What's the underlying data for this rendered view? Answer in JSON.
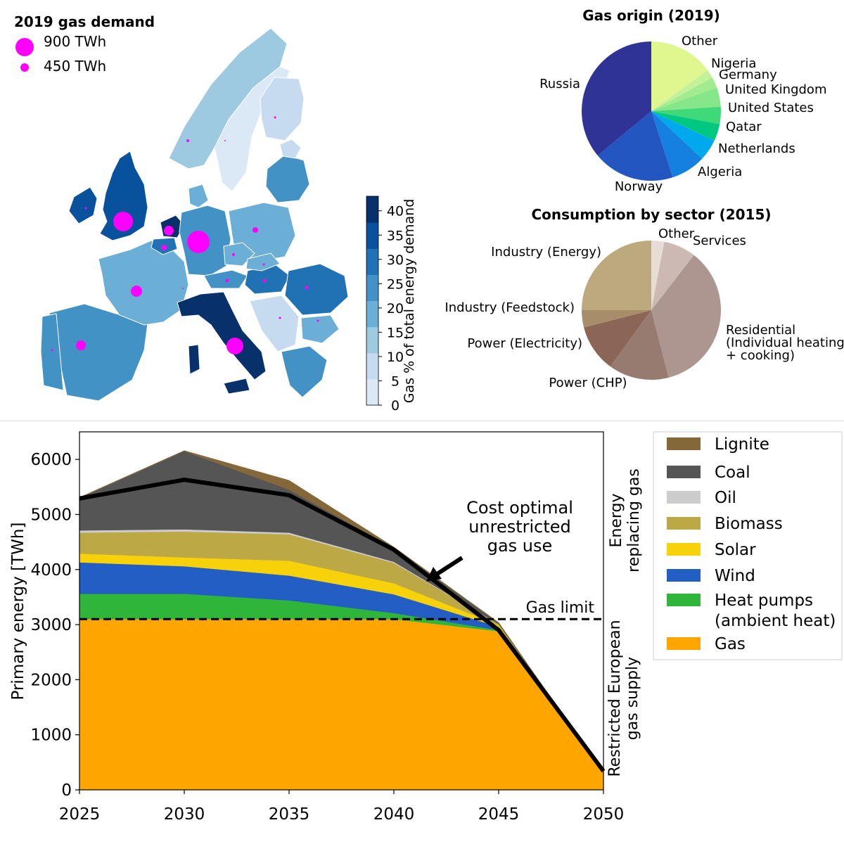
{
  "map": {
    "title": "2019 gas demand",
    "bubble_legend": [
      {
        "label": "900 TWh",
        "value": 900
      },
      {
        "label": "450 TWh",
        "value": 450
      }
    ],
    "bubble_color": "#ff00ff",
    "colorbar": {
      "label": "Gas % of total energy demand",
      "ticks": [
        0,
        5,
        10,
        15,
        20,
        25,
        30,
        35,
        40
      ],
      "vmin": 0,
      "vmax": 43,
      "cmap": [
        "#dbe9f6",
        "#c6dbef",
        "#9ecae1",
        "#6baed6",
        "#4292c6",
        "#2171b5",
        "#08519c",
        "#08306b"
      ]
    }
  },
  "chart_data": [
    {
      "type": "pie",
      "title": "Gas origin (2019)",
      "slices": [
        {
          "label": "Other",
          "value": 15.0,
          "color": "#e0f78f"
        },
        {
          "label": "Nigeria",
          "value": 2.0,
          "color": "#c2f29a"
        },
        {
          "label": "Germany",
          "value": 2.5,
          "color": "#a3eb8f"
        },
        {
          "label": "United Kingdom",
          "value": 4.5,
          "color": "#86e68a"
        },
        {
          "label": "United States",
          "value": 4.0,
          "color": "#3fd97a"
        },
        {
          "label": "Qatar",
          "value": 4.0,
          "color": "#00c880"
        },
        {
          "label": "Netherlands",
          "value": 5.0,
          "color": "#00a8ee"
        },
        {
          "label": "Algeria",
          "value": 8.0,
          "color": "#1580e0"
        },
        {
          "label": "Norway",
          "value": 19.0,
          "color": "#2356c0"
        },
        {
          "label": "Russia",
          "value": 36.0,
          "color": "#2f3396"
        }
      ]
    },
    {
      "type": "pie",
      "title": "Consumption by sector (2015)",
      "slices": [
        {
          "label": "Other",
          "value": 3.0,
          "color": "#e8dcd6"
        },
        {
          "label": "Services",
          "value": 7.5,
          "color": "#cdb9b3"
        },
        {
          "label": "Residential\n(Individual heating\n+ cooking)",
          "value": 35.5,
          "color": "#ad968f"
        },
        {
          "label": "Power (CHP)",
          "value": 14.0,
          "color": "#987b70"
        },
        {
          "label": "Power (Electricity)",
          "value": 11.0,
          "color": "#8b6656"
        },
        {
          "label": "Industry (Feedstock)",
          "value": 4.0,
          "color": "#a88d6a"
        },
        {
          "label": "Industry (Energy)",
          "value": 25.0,
          "color": "#bda97e"
        }
      ]
    },
    {
      "type": "area",
      "x": [
        2025,
        2030,
        2035,
        2040,
        2045,
        2050
      ],
      "xlim": [
        2025,
        2050
      ],
      "ylim": [
        0,
        6500
      ],
      "yticks": [
        0,
        1000,
        2000,
        3000,
        4000,
        5000,
        6000
      ],
      "xticks": [
        2025,
        2030,
        2035,
        2040,
        2045,
        2050
      ],
      "ylabel": "Primary energy [TWh]",
      "series": [
        {
          "name": "Gas",
          "color": "#ffa500",
          "values": [
            3100,
            3100,
            3100,
            3100,
            2880,
            300
          ]
        },
        {
          "name": "Heat pumps\n(ambient heat)",
          "color": "#2eb53a",
          "values": [
            460,
            460,
            340,
            110,
            20,
            0
          ]
        },
        {
          "name": "Wind",
          "color": "#225ec4",
          "values": [
            570,
            500,
            450,
            340,
            60,
            0
          ]
        },
        {
          "name": "Solar",
          "color": "#f7d10a",
          "values": [
            160,
            160,
            270,
            200,
            30,
            0
          ]
        },
        {
          "name": "Biomass",
          "color": "#bda846",
          "values": [
            380,
            470,
            480,
            370,
            20,
            0
          ]
        },
        {
          "name": "Oil",
          "color": "#cccccc",
          "values": [
            40,
            40,
            30,
            20,
            0,
            0
          ]
        },
        {
          "name": "Coal",
          "color": "#555555",
          "values": [
            590,
            1420,
            780,
            250,
            20,
            0
          ]
        },
        {
          "name": "Lignite",
          "color": "#85683a",
          "values": [
            10,
            10,
            170,
            20,
            10,
            0
          ]
        }
      ],
      "legend_order": [
        "Lignite",
        "Coal",
        "Oil",
        "Biomass",
        "Solar",
        "Wind",
        "Heat pumps\n(ambient heat)",
        "Gas"
      ],
      "unrestricted_line": {
        "values": [
          5290,
          5630,
          5350,
          4360,
          2900,
          340
        ],
        "color": "#000000"
      },
      "gas_limit": {
        "value": 3100,
        "label": "Gas limit"
      },
      "annotation": "Cost optimal\nunrestricted\ngas use",
      "side_labels": {
        "top": "Energy\nreplacing gas",
        "bottom": "Restricted European\ngas supply"
      }
    }
  ]
}
